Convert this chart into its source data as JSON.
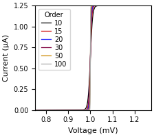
{
  "title": "",
  "xlabel": "Voltage (mV)",
  "ylabel": "Current (μA)",
  "xlim": [
    0.75,
    1.275
  ],
  "ylim": [
    0.0,
    1.25
  ],
  "xticks": [
    0.8,
    0.9,
    1.0,
    1.1,
    1.2
  ],
  "yticks": [
    0.0,
    0.25,
    0.5,
    0.75,
    1.0,
    1.25
  ],
  "orders": [
    10,
    15,
    20,
    30,
    50,
    100
  ],
  "colors": [
    "#000000",
    "#cc0000",
    "#1f1fff",
    "#800040",
    "#cc8800",
    "#aaaaaa"
  ],
  "legend_title": "Order",
  "V0": 1.0,
  "Imax": 1.25,
  "scale": 0.05,
  "figsize": [
    2.24,
    2.0
  ],
  "dpi": 100
}
